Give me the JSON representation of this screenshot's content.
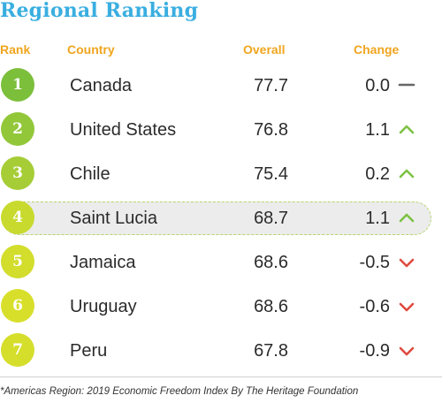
{
  "title": "Regional Ranking",
  "headers": {
    "rank": "Rank",
    "country": "Country",
    "overall": "Overall",
    "change": "Change"
  },
  "rows": [
    {
      "rank": "1",
      "country": "Canada",
      "overall": "77.7",
      "change": "0.0",
      "trend": "neutral-dash-icon"
    },
    {
      "rank": "2",
      "country": "United States",
      "overall": "76.8",
      "change": "1.1",
      "trend": "chevron-up-icon"
    },
    {
      "rank": "3",
      "country": "Chile",
      "overall": "75.4",
      "change": "0.2",
      "trend": "chevron-up-icon"
    },
    {
      "rank": "4",
      "country": "Saint Lucia",
      "overall": "68.7",
      "change": "1.1",
      "trend": "chevron-up-icon",
      "highlighted": true
    },
    {
      "rank": "5",
      "country": "Jamaica",
      "overall": "68.6",
      "change": "-0.5",
      "trend": "chevron-down-icon"
    },
    {
      "rank": "6",
      "country": "Uruguay",
      "overall": "68.6",
      "change": "-0.6",
      "trend": "chevron-down-icon"
    },
    {
      "rank": "7",
      "country": "Peru",
      "overall": "67.8",
      "change": "-0.9",
      "trend": "chevron-down-icon"
    }
  ],
  "footnote": "*Americas Region: 2019 Economic Freedom Index By The Heritage Foundation",
  "colors": {
    "title": "#3aaee0",
    "header": "#f0a51e",
    "up": "#7cc242",
    "down": "#e04a3f",
    "neutral": "#666666"
  }
}
